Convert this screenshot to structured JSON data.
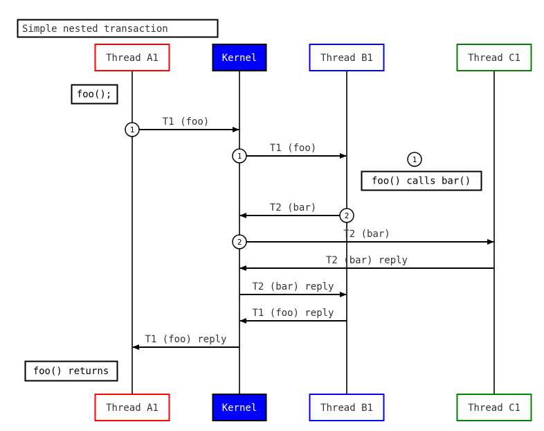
{
  "title": "Simple nested transaction",
  "participants": [
    {
      "id": "A1",
      "label": "Thread A1",
      "border": "#ff0000",
      "fill": "#ffffff",
      "text": "#333333"
    },
    {
      "id": "K",
      "label": "Kernel",
      "border": "#000000",
      "fill": "#0000ff",
      "text": "#ffffff"
    },
    {
      "id": "B1",
      "label": "Thread B1",
      "border": "#0000ff",
      "fill": "#ffffff",
      "text": "#333333"
    },
    {
      "id": "C1",
      "label": "Thread C1",
      "border": "#008000",
      "fill": "#ffffff",
      "text": "#333333"
    }
  ],
  "messages": [
    {
      "from": "A1",
      "to": "K",
      "label": "T1 (foo)",
      "marker": "1"
    },
    {
      "from": "K",
      "to": "B1",
      "label": "T1 (foo)",
      "marker": "1"
    },
    {
      "from": "B1",
      "to": "K",
      "label": "T2 (bar)",
      "marker": "2"
    },
    {
      "from": "K",
      "to": "C1",
      "label": "T2 (bar)",
      "marker": "2"
    },
    {
      "from": "C1",
      "to": "K",
      "label": "T2 (bar) reply",
      "marker": ""
    },
    {
      "from": "K",
      "to": "B1",
      "label": "T2 (bar) reply",
      "marker": ""
    },
    {
      "from": "B1",
      "to": "K",
      "label": "T1 (foo) reply",
      "marker": ""
    },
    {
      "from": "K",
      "to": "A1",
      "label": "T1 (foo) reply",
      "marker": ""
    }
  ],
  "notes": [
    {
      "label": "foo();"
    },
    {
      "label": "foo() calls bar()",
      "marker": "1"
    },
    {
      "label": "foo() returns"
    }
  ]
}
